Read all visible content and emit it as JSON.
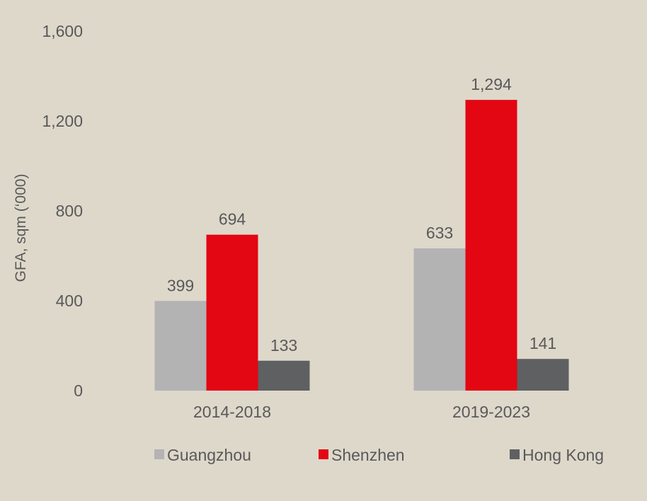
{
  "chart_data": {
    "type": "bar",
    "title": "",
    "xlabel": "",
    "ylabel": "GFA, sqm (‘000)",
    "categories": [
      "2014-2018",
      "2019-2023"
    ],
    "series": [
      {
        "name": "Guangzhou",
        "values": [
          399,
          633
        ],
        "color": "#b3b3b4"
      },
      {
        "name": "Shenzhen",
        "values": [
          694,
          1294
        ],
        "color": "#e30613"
      },
      {
        "name": "Hong Kong",
        "values": [
          133,
          141
        ],
        "color": "#5f6062"
      }
    ],
    "ylim": [
      0,
      1600
    ],
    "yticks": [
      0,
      400,
      800,
      1200,
      1600
    ],
    "ytick_labels": [
      "0",
      "400",
      "800",
      "1,200",
      "1,600"
    ],
    "value_labels": [
      [
        "399",
        "633"
      ],
      [
        "694",
        "1,294"
      ],
      [
        "133",
        "141"
      ]
    ],
    "grid": false,
    "legend_position": "bottom",
    "background": "#ded8cb",
    "text_color": "#595959"
  }
}
